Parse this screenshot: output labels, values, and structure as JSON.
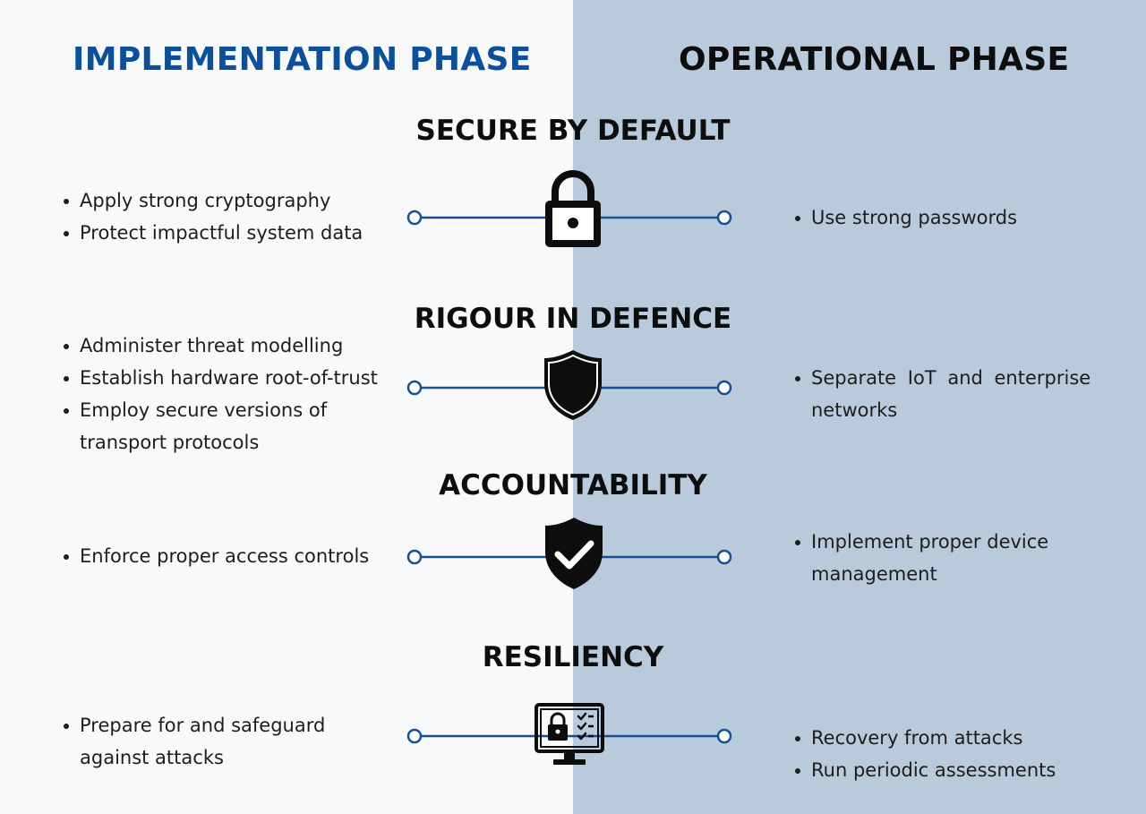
{
  "phases": {
    "implementation": "IMPLEMENTATION PHASE",
    "operational": "OPERATIONAL PHASE"
  },
  "colors": {
    "left_background": "#f8f9fa",
    "right_background": "#b8cadb",
    "implementation_title": "#0e4f9a",
    "connector_line": "#164f93"
  },
  "sections": [
    {
      "title": "SECURE BY DEFAULT",
      "icon": "padlock-icon",
      "implementation": [
        "Apply strong cryptography",
        "Protect impactful system data"
      ],
      "operational": [
        "Use strong passwords"
      ]
    },
    {
      "title": "RIGOUR IN DEFENCE",
      "icon": "shield-icon",
      "implementation": [
        "Administer threat modelling",
        "Establish hardware root-of-trust",
        "Employ secure versions of",
        "transport protocols"
      ],
      "operational": [
        "Separate IoT and enterprise",
        "networks"
      ]
    },
    {
      "title": "ACCOUNTABILITY",
      "icon": "shield-check-icon",
      "implementation": [
        "Enforce proper access controls"
      ],
      "operational": [
        "Implement proper device",
        "management"
      ]
    },
    {
      "title": "RESILIENCY",
      "icon": "monitor-lock-checklist-icon",
      "implementation": [
        "Prepare for and safeguard",
        "against attacks"
      ],
      "operational": [
        "Recovery from attacks",
        "Run periodic assessments"
      ]
    }
  ]
}
